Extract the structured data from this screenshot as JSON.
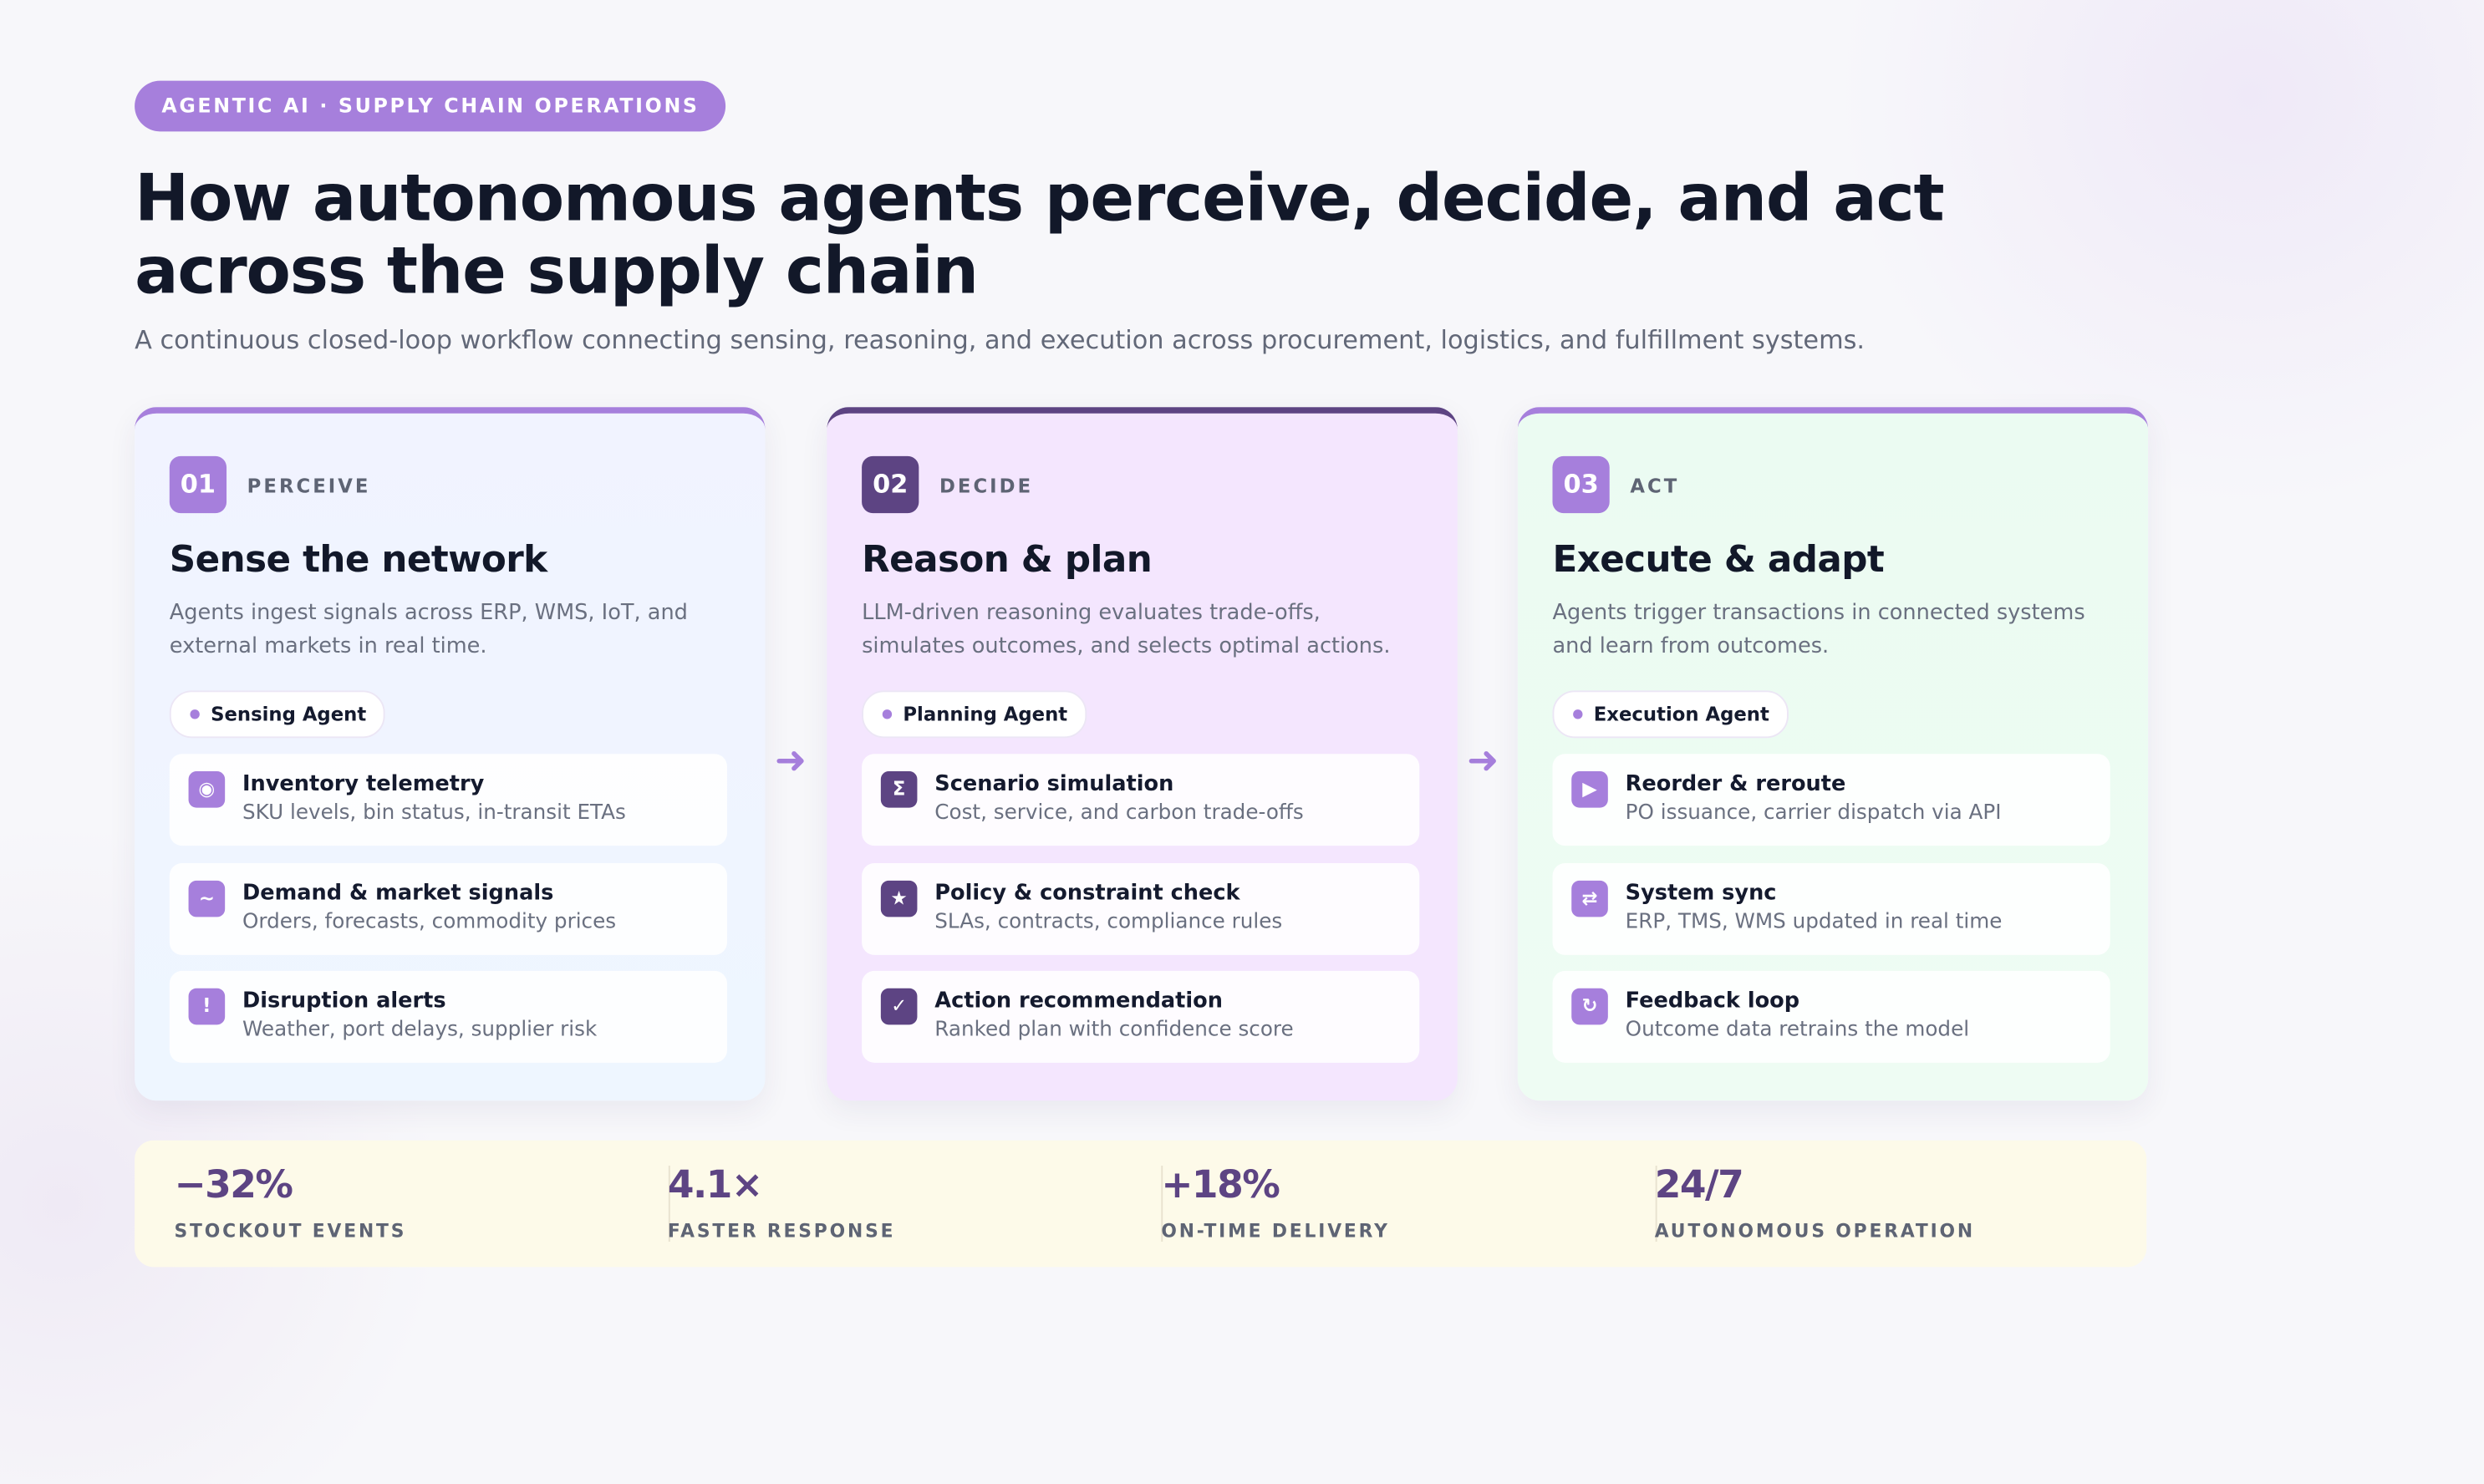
{
  "header": {
    "badge": "AGENTIC AI · SUPPLY CHAIN OPERATIONS",
    "title": "How autonomous agents perceive, decide, and act across the supply chain",
    "subtitle": "A continuous closed-loop workflow connecting sensing, reasoning, and execution across procurement, logistics, and fulfillment systems."
  },
  "stages": [
    {
      "number": "01",
      "label": "PERCEIVE",
      "title": "Sense the network",
      "description": "Agents ingest signals across ERP, WMS, IoT, and external markets in real time.",
      "agent": "Sensing Agent",
      "items": [
        {
          "icon": "◉",
          "title": "Inventory telemetry",
          "detail": "SKU levels, bin status, in-transit ETAs"
        },
        {
          "icon": "~",
          "title": "Demand & market signals",
          "detail": "Orders, forecasts, commodity prices"
        },
        {
          "icon": "!",
          "title": "Disruption alerts",
          "detail": "Weather, port delays, supplier risk"
        }
      ]
    },
    {
      "number": "02",
      "label": "DECIDE",
      "title": "Reason & plan",
      "description": "LLM-driven reasoning evaluates trade-offs, simulates outcomes, and selects optimal actions.",
      "agent": "Planning Agent",
      "items": [
        {
          "icon": "Σ",
          "title": "Scenario simulation",
          "detail": "Cost, service, and carbon trade-offs"
        },
        {
          "icon": "★",
          "title": "Policy & constraint check",
          "detail": "SLAs, contracts, compliance rules"
        },
        {
          "icon": "✓",
          "title": "Action recommendation",
          "detail": "Ranked plan with confidence score"
        }
      ]
    },
    {
      "number": "03",
      "label": "ACT",
      "title": "Execute & adapt",
      "description": "Agents trigger transactions in connected systems and learn from outcomes.",
      "agent": "Execution Agent",
      "items": [
        {
          "icon": "▶",
          "title": "Reorder & reroute",
          "detail": "PO issuance, carrier dispatch via API"
        },
        {
          "icon": "⇄",
          "title": "System sync",
          "detail": "ERP, TMS, WMS updated in real time"
        },
        {
          "icon": "↻",
          "title": "Feedback loop",
          "detail": "Outcome data retrains the model"
        }
      ]
    }
  ],
  "stats": [
    {
      "value": "−32%",
      "label": "STOCKOUT EVENTS"
    },
    {
      "value": "4.1×",
      "label": "FASTER RESPONSE"
    },
    {
      "value": "+18%",
      "label": "ON-TIME DELIVERY"
    },
    {
      "value": "24/7",
      "label": "AUTONOMOUS OPERATION"
    }
  ]
}
